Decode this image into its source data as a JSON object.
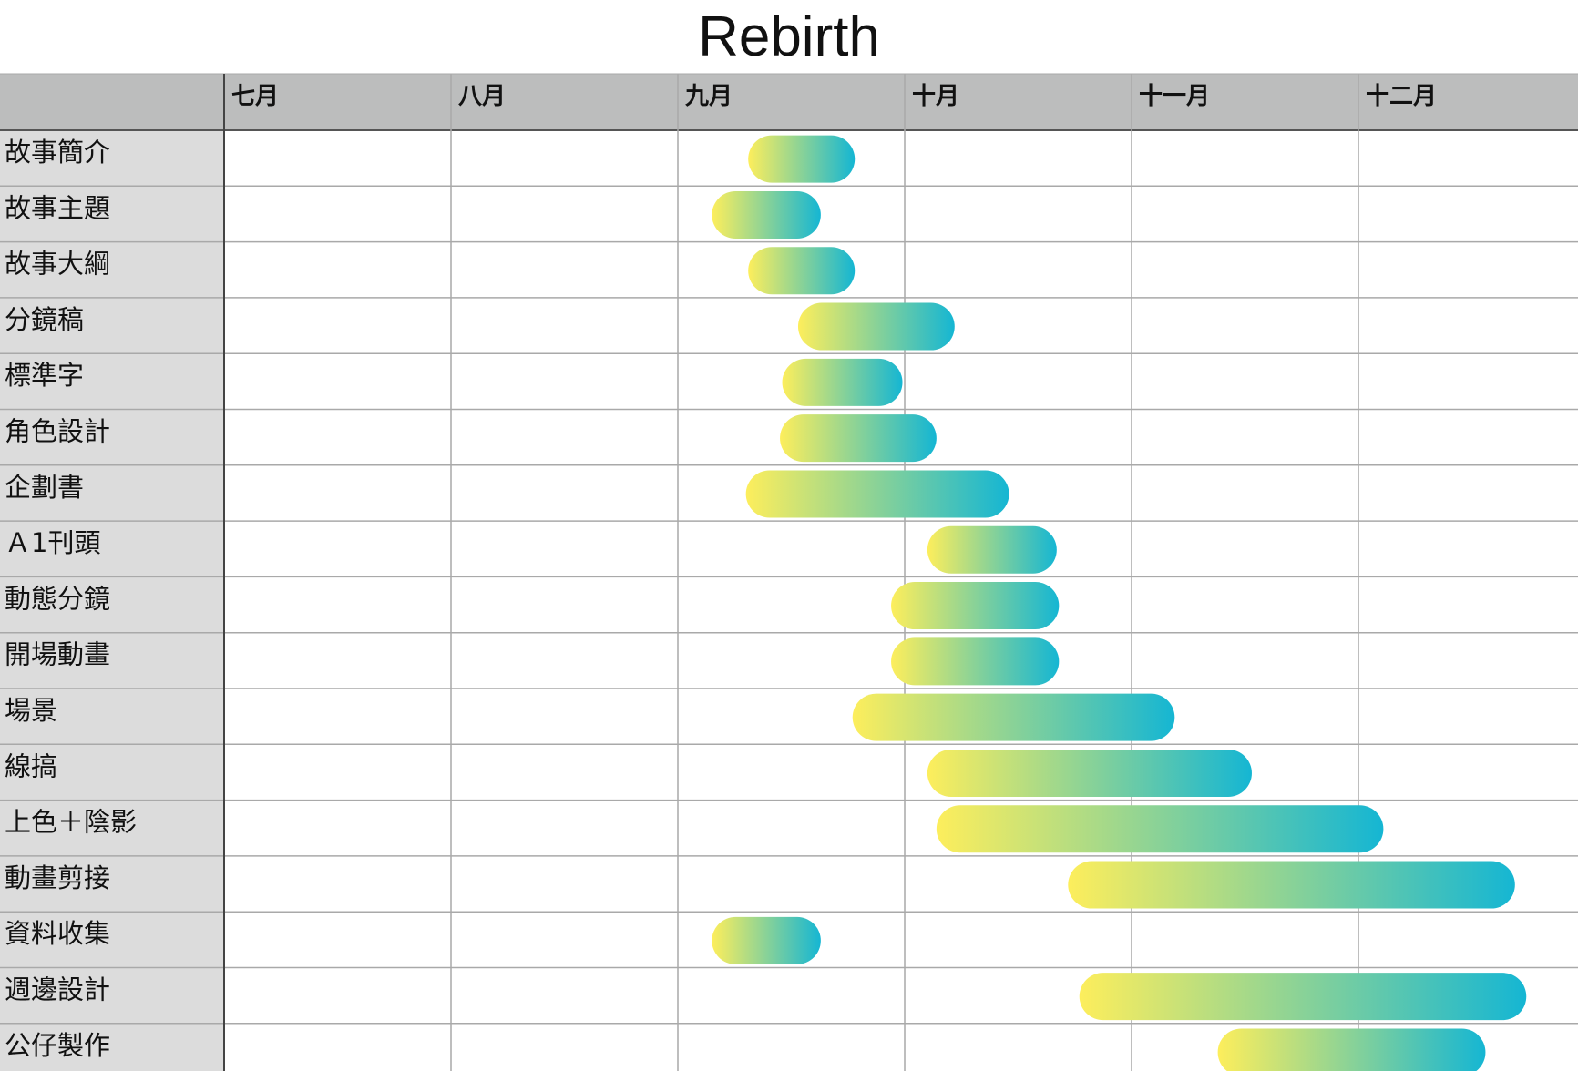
{
  "chart_data": {
    "type": "gantt",
    "title": "Rebirth",
    "months": [
      "七月",
      "八月",
      "九月",
      "十月",
      "十一月",
      "十二月"
    ],
    "tasks": [
      {
        "name": "故事簡介",
        "start": 2.31,
        "end": 2.78
      },
      {
        "name": "故事主題",
        "start": 2.15,
        "end": 2.63
      },
      {
        "name": "故事大綱",
        "start": 2.31,
        "end": 2.78
      },
      {
        "name": "分鏡稿",
        "start": 2.53,
        "end": 3.22
      },
      {
        "name": "標準字",
        "start": 2.46,
        "end": 2.99
      },
      {
        "name": "角色設計",
        "start": 2.45,
        "end": 3.14
      },
      {
        "name": "企劃書",
        "start": 2.3,
        "end": 3.46
      },
      {
        "name": "Ａ1刊頭",
        "start": 3.1,
        "end": 3.67
      },
      {
        "name": "動態分鏡",
        "start": 2.94,
        "end": 3.68
      },
      {
        "name": "開場動畫",
        "start": 2.94,
        "end": 3.68
      },
      {
        "name": "場景",
        "start": 2.77,
        "end": 4.19
      },
      {
        "name": "線搞",
        "start": 3.1,
        "end": 4.53
      },
      {
        "name": "上色＋陰影",
        "start": 3.14,
        "end": 5.11
      },
      {
        "name": "動畫剪接",
        "start": 3.72,
        "end": 5.69
      },
      {
        "name": "資料收集",
        "start": 2.15,
        "end": 2.63
      },
      {
        "name": "週邊設計",
        "start": 3.77,
        "end": 5.74
      },
      {
        "name": "公仔製作",
        "start": 4.38,
        "end": 5.56
      }
    ],
    "colors": {
      "bar_start": "#fdee5c",
      "bar_end": "#15b6d3",
      "header_bg": "#bcbdbd",
      "label_bg": "#dcdcdc",
      "grid": "#a9a9a9"
    }
  }
}
